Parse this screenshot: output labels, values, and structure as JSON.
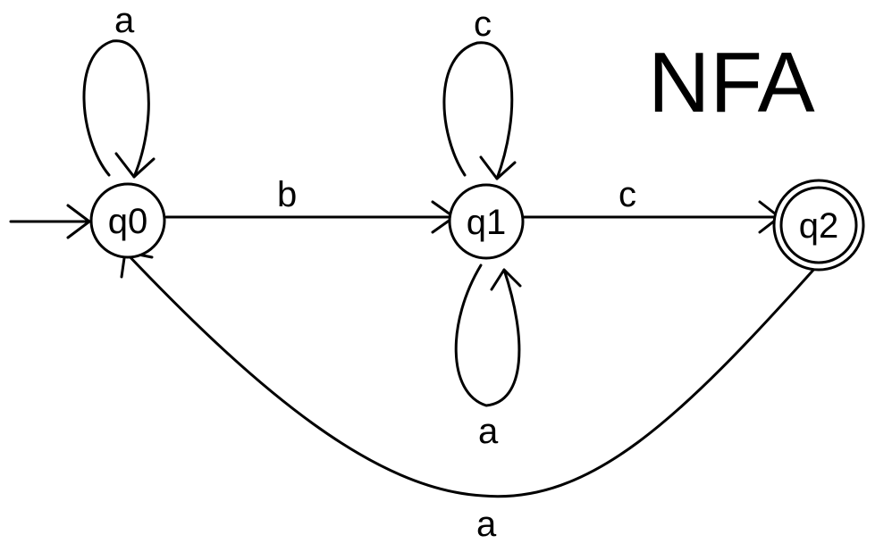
{
  "title": "NFA",
  "states": [
    {
      "id": "q0",
      "label": "q0",
      "initial": true,
      "accepting": false
    },
    {
      "id": "q1",
      "label": "q1",
      "initial": false,
      "accepting": false
    },
    {
      "id": "q2",
      "label": "q2",
      "initial": false,
      "accepting": true
    }
  ],
  "transitions": [
    {
      "from": "q0",
      "to": "q0",
      "label": "a"
    },
    {
      "from": "q0",
      "to": "q1",
      "label": "b"
    },
    {
      "from": "q1",
      "to": "q1",
      "label": "c"
    },
    {
      "from": "q1",
      "to": "q1",
      "label": "a"
    },
    {
      "from": "q1",
      "to": "q2",
      "label": "c"
    },
    {
      "from": "q2",
      "to": "q0",
      "label": "a"
    }
  ]
}
